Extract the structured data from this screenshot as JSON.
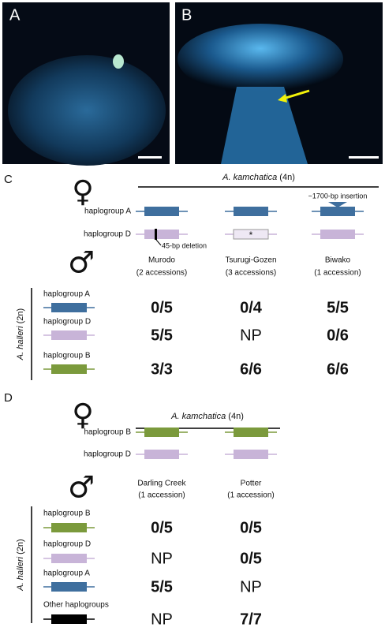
{
  "photos": {
    "a": "A",
    "b": "B"
  },
  "panel_c": {
    "label": "C",
    "female_symbol": "♀",
    "male_symbol": "♂",
    "female_species": {
      "name": "A. kamchatica",
      "ploidy": "(4n)"
    },
    "female_rows": [
      {
        "label": "haplogroup A",
        "line": "#3f6f9e",
        "genes": [
          {
            "color": "#3f6f9e"
          },
          {
            "color": "#3f6f9e"
          },
          {
            "color": "#3f6f9e",
            "insertion": "~1700-bp insertion"
          }
        ]
      },
      {
        "label": "haplogroup D",
        "line": "#c8b4d8",
        "genes": [
          {
            "color": "#c8b4d8",
            "deletion": "45-bp deletion"
          },
          {
            "color": "#eee8f4",
            "star": "*"
          },
          {
            "color": "#c8b4d8"
          }
        ]
      }
    ],
    "populations": [
      {
        "name": "Murodo",
        "accessions": "(2 accessions)"
      },
      {
        "name": "Tsurugi-Gozen",
        "accessions": "(3 accessions)"
      },
      {
        "name": "Biwako",
        "accessions": "(1 accession)"
      }
    ],
    "male_species": {
      "name": "A. halleri",
      "ploidy": "(2n)"
    },
    "male_rows": [
      {
        "label": "haplogroup A",
        "color": "#3f6f9e",
        "results": [
          {
            "text": "0/5",
            "bold": true
          },
          {
            "text": "0/4",
            "bold": true
          },
          {
            "text": "5/5",
            "bold": true
          }
        ]
      },
      {
        "label": "haplogroup D",
        "color": "#c8b4d8",
        "results": [
          {
            "text": "5/5",
            "bold": true
          },
          {
            "text": "NP",
            "bold": false
          },
          {
            "text": "0/6",
            "bold": true
          }
        ]
      },
      {
        "label": "haplogroup B",
        "color": "#7b9a3c",
        "results": [
          {
            "text": "3/3",
            "bold": true
          },
          {
            "text": "6/6",
            "bold": true
          },
          {
            "text": "6/6",
            "bold": true
          }
        ]
      }
    ]
  },
  "panel_d": {
    "label": "D",
    "female_symbol": "♀",
    "male_symbol": "♂",
    "female_species": {
      "name": "A. kamchatica",
      "ploidy": "(4n)"
    },
    "female_rows": [
      {
        "label": "haplogroup B",
        "line": "#7b9a3c",
        "genes": [
          {
            "color": "#7b9a3c"
          },
          {
            "color": "#7b9a3c"
          }
        ]
      },
      {
        "label": "haplogroup D",
        "line": "#c8b4d8",
        "genes": [
          {
            "color": "#c8b4d8"
          },
          {
            "color": "#c8b4d8"
          }
        ]
      }
    ],
    "populations": [
      {
        "name": "Darling Creek",
        "accessions": "(1 accession)"
      },
      {
        "name": "Potter",
        "accessions": "(1 accession)"
      }
    ],
    "male_species": {
      "name": "A. halleri",
      "ploidy": "(2n)"
    },
    "male_rows": [
      {
        "label": "haplogroup B",
        "color": "#7b9a3c",
        "results": [
          {
            "text": "0/5",
            "bold": true
          },
          {
            "text": "0/5",
            "bold": true
          }
        ]
      },
      {
        "label": "haplogroup D",
        "color": "#c8b4d8",
        "results": [
          {
            "text": "NP",
            "bold": false
          },
          {
            "text": "0/5",
            "bold": true
          }
        ]
      },
      {
        "label": "haplogroup A",
        "color": "#3f6f9e",
        "results": [
          {
            "text": "5/5",
            "bold": true
          },
          {
            "text": "NP",
            "bold": false
          }
        ]
      },
      {
        "label": "Other haplogroups",
        "color": "#000000",
        "results": [
          {
            "text": "NP",
            "bold": false
          },
          {
            "text": "7/7",
            "bold": true
          }
        ]
      }
    ]
  }
}
